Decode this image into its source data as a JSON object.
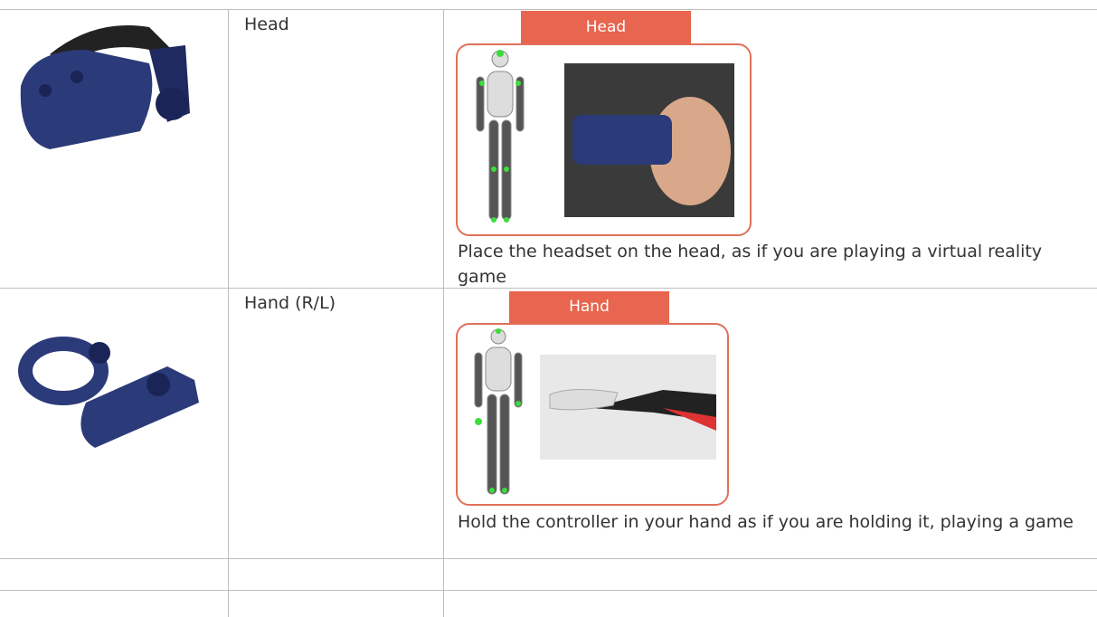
{
  "table": {
    "rows": [
      {
        "label": "Head",
        "banner": "Head",
        "instruction": "Place the headset on the head, as if you are playing a virtual reality game"
      },
      {
        "label": "Hand (R/L)",
        "banner": "Hand",
        "instruction": "Hold the controller in your hand as if you are holding it, playing a game"
      }
    ]
  }
}
